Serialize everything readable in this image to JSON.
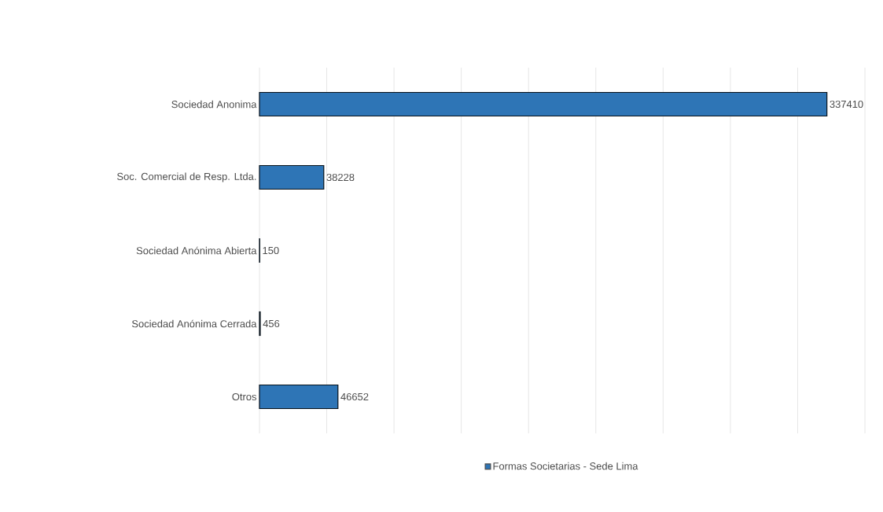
{
  "chart_data": {
    "type": "bar",
    "orientation": "horizontal",
    "categories": [
      "Sociedad Anonima",
      "Soc. Comercial de Resp. Ltda.",
      "Sociedad Anónima Abierta",
      "Sociedad Anónima Cerrada",
      "Otros"
    ],
    "series": [
      {
        "name": "Formas Societarias - Sede Lima",
        "color": "#2e75b6",
        "values": [
          337410,
          38228,
          150,
          456,
          46652
        ]
      }
    ],
    "xlim": [
      0,
      360000
    ],
    "xticks": [
      {
        "value": 0,
        "label": null
      },
      {
        "value": 40000,
        "label": null
      },
      {
        "value": 80000,
        "label": null
      },
      {
        "value": 120000,
        "label": null
      },
      {
        "value": 160000,
        "label": null
      },
      {
        "value": 200000,
        "label": null
      },
      {
        "value": 240000,
        "label": null
      },
      {
        "value": 280000,
        "label": null
      },
      {
        "value": 320000,
        "label": null
      },
      {
        "value": 360000,
        "label": null
      }
    ],
    "grid": "x",
    "tick_labels": "y",
    "data_labels": true,
    "legend": "bottom"
  }
}
